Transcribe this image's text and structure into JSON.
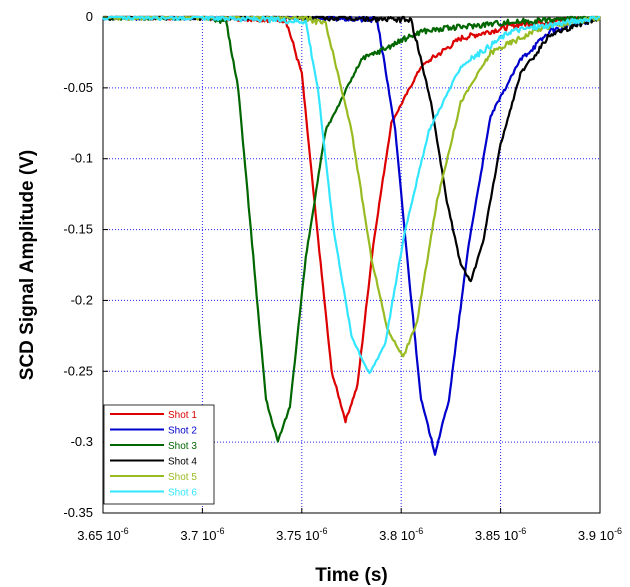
{
  "chart_data": {
    "type": "line",
    "xlabel": "Time (s)",
    "ylabel": "SCD Signal Amplitude (V)",
    "xlim": [
      3.65,
      3.9
    ],
    "ylim": [
      -0.35,
      0
    ],
    "x_tick_labels": [
      {
        "mantissa": "3.65",
        "power": "10",
        "exp": "-6"
      },
      {
        "mantissa": "3.7",
        "power": "10",
        "exp": "-6"
      },
      {
        "mantissa": "3.75",
        "power": "10",
        "exp": "-6"
      },
      {
        "mantissa": "3.8",
        "power": "10",
        "exp": "-6"
      },
      {
        "mantissa": "3.85",
        "power": "10",
        "exp": "-6"
      },
      {
        "mantissa": "3.9",
        "power": "10",
        "exp": "-6"
      }
    ],
    "y_ticks": [
      0,
      -0.05,
      -0.1,
      -0.15,
      -0.2,
      -0.25,
      -0.3,
      -0.35
    ],
    "y_tick_labels": [
      "0",
      "-0.05",
      "-0.1",
      "-0.15",
      "-0.2",
      "-0.25",
      "-0.3",
      "-0.35"
    ],
    "grid": true,
    "legend_position": "bottom-left",
    "series": [
      {
        "name": "Shot 1",
        "color": "#dd0000",
        "points": [
          [
            3.65,
            0
          ],
          [
            3.7,
            0
          ],
          [
            3.742,
            -0.002
          ],
          [
            3.75,
            -0.04
          ],
          [
            3.757,
            -0.14
          ],
          [
            3.765,
            -0.25
          ],
          [
            3.772,
            -0.285
          ],
          [
            3.778,
            -0.26
          ],
          [
            3.786,
            -0.16
          ],
          [
            3.795,
            -0.075
          ],
          [
            3.81,
            -0.035
          ],
          [
            3.83,
            -0.015
          ],
          [
            3.86,
            -0.005
          ],
          [
            3.9,
            0
          ]
        ]
      },
      {
        "name": "Shot 2",
        "color": "#0000cc",
        "points": [
          [
            3.65,
            0
          ],
          [
            3.75,
            0
          ],
          [
            3.788,
            -0.002
          ],
          [
            3.797,
            -0.08
          ],
          [
            3.803,
            -0.17
          ],
          [
            3.81,
            -0.27
          ],
          [
            3.817,
            -0.308
          ],
          [
            3.824,
            -0.27
          ],
          [
            3.834,
            -0.16
          ],
          [
            3.845,
            -0.07
          ],
          [
            3.86,
            -0.03
          ],
          [
            3.875,
            -0.01
          ],
          [
            3.9,
            0
          ]
        ]
      },
      {
        "name": "Shot 3",
        "color": "#006600",
        "points": [
          [
            3.65,
            0
          ],
          [
            3.7,
            0
          ],
          [
            3.712,
            -0.003
          ],
          [
            3.718,
            -0.05
          ],
          [
            3.725,
            -0.16
          ],
          [
            3.732,
            -0.27
          ],
          [
            3.738,
            -0.3
          ],
          [
            3.744,
            -0.275
          ],
          [
            3.752,
            -0.17
          ],
          [
            3.762,
            -0.08
          ],
          [
            3.78,
            -0.03
          ],
          [
            3.81,
            -0.01
          ],
          [
            3.85,
            -0.004
          ],
          [
            3.9,
            0
          ]
        ]
      },
      {
        "name": "Shot 4",
        "color": "#000000",
        "points": [
          [
            3.65,
            0
          ],
          [
            3.75,
            0
          ],
          [
            3.805,
            -0.002
          ],
          [
            3.815,
            -0.06
          ],
          [
            3.823,
            -0.13
          ],
          [
            3.83,
            -0.175
          ],
          [
            3.835,
            -0.186
          ],
          [
            3.841,
            -0.16
          ],
          [
            3.85,
            -0.09
          ],
          [
            3.86,
            -0.04
          ],
          [
            3.875,
            -0.012
          ],
          [
            3.9,
            0
          ]
        ]
      },
      {
        "name": "Shot 5",
        "color": "#99bb22",
        "points": [
          [
            3.65,
            0
          ],
          [
            3.75,
            0
          ],
          [
            3.762,
            -0.005
          ],
          [
            3.775,
            -0.08
          ],
          [
            3.785,
            -0.17
          ],
          [
            3.793,
            -0.22
          ],
          [
            3.801,
            -0.24
          ],
          [
            3.808,
            -0.215
          ],
          [
            3.818,
            -0.13
          ],
          [
            3.83,
            -0.06
          ],
          [
            3.845,
            -0.025
          ],
          [
            3.87,
            -0.008
          ],
          [
            3.9,
            0
          ]
        ]
      },
      {
        "name": "Shot 6",
        "color": "#33e6ff",
        "points": [
          [
            3.65,
            0
          ],
          [
            3.7,
            0
          ],
          [
            3.752,
            -0.003
          ],
          [
            3.758,
            -0.05
          ],
          [
            3.766,
            -0.15
          ],
          [
            3.775,
            -0.225
          ],
          [
            3.784,
            -0.252
          ],
          [
            3.792,
            -0.23
          ],
          [
            3.802,
            -0.15
          ],
          [
            3.814,
            -0.08
          ],
          [
            3.83,
            -0.035
          ],
          [
            3.855,
            -0.01
          ],
          [
            3.9,
            0
          ]
        ]
      }
    ]
  }
}
